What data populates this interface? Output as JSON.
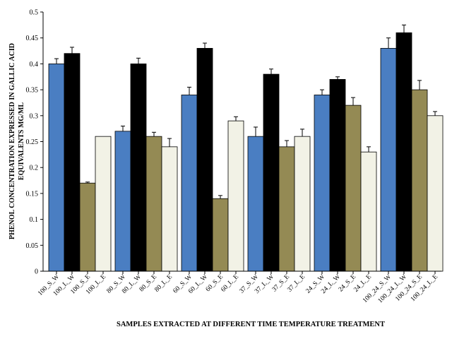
{
  "chart_data": {
    "type": "bar",
    "title": "",
    "xlabel": "SAMPLES EXTRACTED AT DIFFERENT TIME TEMPERATURE TREATMENT",
    "ylabel_line1": "PHENOL CONCENTRATION EXPRESSED IN GALLIC ACID",
    "ylabel_line2": "EQUIVALENTS MG/ML",
    "ylim": [
      0,
      0.5
    ],
    "yticks": [
      "0",
      "0.05",
      "0.1",
      "0.15",
      "0.2",
      "0.25",
      "0.3",
      "0.35",
      "0.4",
      "0.45",
      "0.5"
    ],
    "grid": false,
    "legend": "none",
    "series_colors": [
      "#4a7ec2",
      "#000000",
      "#948a54",
      "#f2f2e6"
    ],
    "groups": [
      {
        "bars": [
          {
            "label": "100_S_W",
            "value": 0.4,
            "error": 0.01
          },
          {
            "label": "100_L_W",
            "value": 0.42,
            "error": 0.012
          },
          {
            "label": "100_S_E",
            "value": 0.17,
            "error": 0.002
          },
          {
            "label": "100_L_E",
            "value": 0.26,
            "error": 0.0
          }
        ]
      },
      {
        "bars": [
          {
            "label": "80_S_W",
            "value": 0.27,
            "error": 0.01
          },
          {
            "label": "80_L_W",
            "value": 0.4,
            "error": 0.011
          },
          {
            "label": "80_S_E",
            "value": 0.26,
            "error": 0.008
          },
          {
            "label": "80_L_E",
            "value": 0.24,
            "error": 0.016
          }
        ]
      },
      {
        "bars": [
          {
            "label": "60_S_W",
            "value": 0.34,
            "error": 0.015
          },
          {
            "label": "60_L_W",
            "value": 0.43,
            "error": 0.01
          },
          {
            "label": "60_S_E",
            "value": 0.14,
            "error": 0.006
          },
          {
            "label": "60_L_E",
            "value": 0.29,
            "error": 0.008
          }
        ]
      },
      {
        "bars": [
          {
            "label": "37_S_W",
            "value": 0.26,
            "error": 0.018
          },
          {
            "label": "37_L_W",
            "value": 0.38,
            "error": 0.01
          },
          {
            "label": "37_S_E",
            "value": 0.24,
            "error": 0.012
          },
          {
            "label": "37_L_E",
            "value": 0.26,
            "error": 0.014
          }
        ]
      },
      {
        "bars": [
          {
            "label": "24_S_W",
            "value": 0.34,
            "error": 0.01
          },
          {
            "label": "24_L_W",
            "value": 0.37,
            "error": 0.005
          },
          {
            "label": "24_S_E",
            "value": 0.32,
            "error": 0.015
          },
          {
            "label": "24_L_E",
            "value": 0.23,
            "error": 0.01
          }
        ]
      },
      {
        "bars": [
          {
            "label": "100_24_S_W",
            "value": 0.43,
            "error": 0.02
          },
          {
            "label": "100_24_L_W",
            "value": 0.46,
            "error": 0.015
          },
          {
            "label": "100_24_S_E",
            "value": 0.35,
            "error": 0.018
          },
          {
            "label": "100_24_L_E",
            "value": 0.3,
            "error": 0.008
          }
        ]
      }
    ]
  }
}
